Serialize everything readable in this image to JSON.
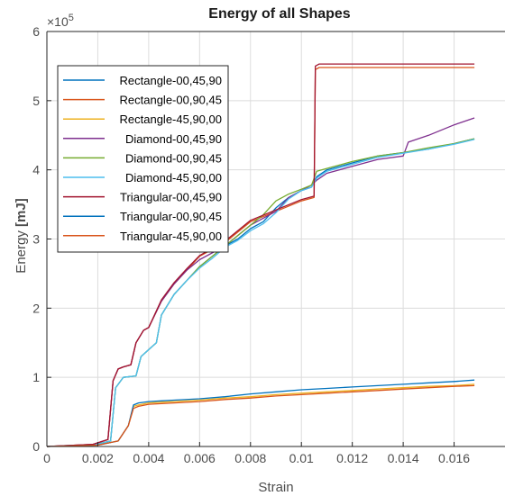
{
  "chart_data": {
    "type": "line",
    "title": "Energy of all Shapes",
    "xlabel": "Strain",
    "ylabel_prefix": "Energy ",
    "ylabel_unit": "[mJ]",
    "exponent_base": "×10",
    "exponent_power": "5",
    "xlim": [
      0,
      0.018
    ],
    "ylim": [
      0,
      600000
    ],
    "xticks": [
      0,
      0.002,
      0.004,
      0.006,
      0.008,
      0.01,
      0.012,
      0.014,
      0.016
    ],
    "xtick_labels": [
      "0",
      "0.002",
      "0.004",
      "0.006",
      "0.008",
      "0.01",
      "0.012",
      "0.014",
      "0.016"
    ],
    "yticks": [
      0,
      100000,
      200000,
      300000,
      400000,
      500000,
      600000
    ],
    "ytick_labels": [
      "0",
      "1",
      "2",
      "3",
      "4",
      "5",
      "6"
    ],
    "grid": true,
    "legend_position": "upper-left",
    "series": [
      {
        "name": "Rectangle-00,45,90",
        "color": "#0072BD",
        "points": [
          [
            0,
            0
          ],
          [
            0.0018,
            2000
          ],
          [
            0.0025,
            8000
          ],
          [
            0.0027,
            85000
          ],
          [
            0.003,
            100000
          ],
          [
            0.0035,
            102000
          ],
          [
            0.0037,
            130000
          ],
          [
            0.004,
            140000
          ],
          [
            0.0043,
            150000
          ],
          [
            0.0045,
            190000
          ],
          [
            0.005,
            220000
          ],
          [
            0.0055,
            240000
          ],
          [
            0.006,
            260000
          ],
          [
            0.0065,
            275000
          ],
          [
            0.007,
            290000
          ],
          [
            0.0075,
            300000
          ],
          [
            0.008,
            315000
          ],
          [
            0.0085,
            325000
          ],
          [
            0.009,
            345000
          ],
          [
            0.0095,
            360000
          ],
          [
            0.01,
            370000
          ],
          [
            0.0104,
            375000
          ],
          [
            0.0106,
            390000
          ],
          [
            0.011,
            400000
          ],
          [
            0.012,
            410000
          ],
          [
            0.013,
            420000
          ],
          [
            0.014,
            425000
          ],
          [
            0.015,
            430000
          ],
          [
            0.016,
            438000
          ],
          [
            0.0168,
            445000
          ]
        ]
      },
      {
        "name": "Rectangle-00,90,45",
        "color": "#D95319",
        "points": [
          [
            0,
            0
          ],
          [
            0.0018,
            3000
          ],
          [
            0.0024,
            10000
          ],
          [
            0.0026,
            95000
          ],
          [
            0.0028,
            112000
          ],
          [
            0.003,
            115000
          ],
          [
            0.0033,
            118000
          ],
          [
            0.0035,
            150000
          ],
          [
            0.0038,
            168000
          ],
          [
            0.004,
            172000
          ],
          [
            0.0045,
            210000
          ],
          [
            0.005,
            235000
          ],
          [
            0.0055,
            255000
          ],
          [
            0.006,
            275000
          ],
          [
            0.007,
            295000
          ],
          [
            0.008,
            325000
          ],
          [
            0.009,
            340000
          ],
          [
            0.01,
            355000
          ],
          [
            0.0105,
            360000
          ],
          [
            0.01055,
            545000
          ],
          [
            0.0107,
            548000
          ],
          [
            0.0168,
            548000
          ]
        ]
      },
      {
        "name": "Rectangle-45,90,00",
        "color": "#EDB120",
        "points": [
          [
            0,
            0
          ],
          [
            0.002,
            2000
          ],
          [
            0.0028,
            8000
          ],
          [
            0.0032,
            30000
          ],
          [
            0.0034,
            58000
          ],
          [
            0.0036,
            60000
          ],
          [
            0.004,
            63000
          ],
          [
            0.0045,
            64000
          ],
          [
            0.005,
            65000
          ],
          [
            0.006,
            67000
          ],
          [
            0.007,
            70000
          ],
          [
            0.008,
            72000
          ],
          [
            0.009,
            75000
          ],
          [
            0.01,
            77000
          ],
          [
            0.011,
            79000
          ],
          [
            0.012,
            81000
          ],
          [
            0.013,
            83000
          ],
          [
            0.014,
            85000
          ],
          [
            0.015,
            87000
          ],
          [
            0.016,
            88000
          ],
          [
            0.0168,
            90000
          ]
        ]
      },
      {
        "name": "Diamond-00,45,90",
        "color": "#7E2F8E",
        "points": [
          [
            0,
            0
          ],
          [
            0.0018,
            3000
          ],
          [
            0.0024,
            10000
          ],
          [
            0.0026,
            95000
          ],
          [
            0.0028,
            112000
          ],
          [
            0.003,
            115000
          ],
          [
            0.0033,
            118000
          ],
          [
            0.0035,
            150000
          ],
          [
            0.0038,
            168000
          ],
          [
            0.004,
            172000
          ],
          [
            0.0045,
            210000
          ],
          [
            0.005,
            235000
          ],
          [
            0.0055,
            255000
          ],
          [
            0.006,
            270000
          ],
          [
            0.007,
            290000
          ],
          [
            0.008,
            320000
          ],
          [
            0.009,
            340000
          ],
          [
            0.0095,
            360000
          ],
          [
            0.01,
            370000
          ],
          [
            0.0104,
            378000
          ],
          [
            0.0106,
            385000
          ],
          [
            0.011,
            395000
          ],
          [
            0.012,
            405000
          ],
          [
            0.013,
            415000
          ],
          [
            0.014,
            420000
          ],
          [
            0.0142,
            440000
          ],
          [
            0.015,
            450000
          ],
          [
            0.016,
            465000
          ],
          [
            0.0168,
            475000
          ]
        ]
      },
      {
        "name": "Diamond-00,90,45",
        "color": "#77AC30",
        "points": [
          [
            0,
            0
          ],
          [
            0.0018,
            2000
          ],
          [
            0.0025,
            8000
          ],
          [
            0.0027,
            85000
          ],
          [
            0.003,
            100000
          ],
          [
            0.0035,
            102000
          ],
          [
            0.0037,
            130000
          ],
          [
            0.004,
            140000
          ],
          [
            0.0043,
            150000
          ],
          [
            0.0045,
            190000
          ],
          [
            0.005,
            220000
          ],
          [
            0.0055,
            240000
          ],
          [
            0.006,
            260000
          ],
          [
            0.0065,
            275000
          ],
          [
            0.007,
            290000
          ],
          [
            0.0075,
            305000
          ],
          [
            0.008,
            320000
          ],
          [
            0.0085,
            335000
          ],
          [
            0.009,
            355000
          ],
          [
            0.0095,
            365000
          ],
          [
            0.01,
            372000
          ],
          [
            0.0104,
            378000
          ],
          [
            0.0106,
            398000
          ],
          [
            0.011,
            402000
          ],
          [
            0.012,
            412000
          ],
          [
            0.013,
            420000
          ],
          [
            0.014,
            425000
          ],
          [
            0.015,
            432000
          ],
          [
            0.016,
            438000
          ],
          [
            0.0168,
            445000
          ]
        ]
      },
      {
        "name": "Diamond-45,90,00",
        "color": "#4DBEEE",
        "points": [
          [
            0,
            0
          ],
          [
            0.0018,
            2000
          ],
          [
            0.0025,
            8000
          ],
          [
            0.0027,
            85000
          ],
          [
            0.003,
            100000
          ],
          [
            0.0035,
            102000
          ],
          [
            0.0037,
            130000
          ],
          [
            0.004,
            140000
          ],
          [
            0.0043,
            150000
          ],
          [
            0.0045,
            190000
          ],
          [
            0.005,
            220000
          ],
          [
            0.0055,
            240000
          ],
          [
            0.006,
            258000
          ],
          [
            0.0065,
            272000
          ],
          [
            0.007,
            288000
          ],
          [
            0.0075,
            298000
          ],
          [
            0.008,
            312000
          ],
          [
            0.0085,
            322000
          ],
          [
            0.009,
            338000
          ],
          [
            0.0095,
            358000
          ],
          [
            0.01,
            370000
          ],
          [
            0.0104,
            375000
          ],
          [
            0.0106,
            388000
          ],
          [
            0.011,
            398000
          ],
          [
            0.012,
            408000
          ],
          [
            0.013,
            418000
          ],
          [
            0.014,
            424000
          ],
          [
            0.015,
            430000
          ],
          [
            0.016,
            437000
          ],
          [
            0.0168,
            444000
          ]
        ]
      },
      {
        "name": "Triangular-00,45,90",
        "color": "#A2142F",
        "points": [
          [
            0,
            0
          ],
          [
            0.0018,
            3000
          ],
          [
            0.0024,
            10000
          ],
          [
            0.0026,
            95000
          ],
          [
            0.0028,
            112000
          ],
          [
            0.003,
            115000
          ],
          [
            0.0033,
            118000
          ],
          [
            0.0035,
            150000
          ],
          [
            0.0038,
            168000
          ],
          [
            0.004,
            172000
          ],
          [
            0.0045,
            212000
          ],
          [
            0.005,
            237000
          ],
          [
            0.0055,
            257000
          ],
          [
            0.006,
            276000
          ],
          [
            0.007,
            297000
          ],
          [
            0.008,
            327000
          ],
          [
            0.009,
            342000
          ],
          [
            0.01,
            357000
          ],
          [
            0.0105,
            362000
          ],
          [
            0.01055,
            550000
          ],
          [
            0.0107,
            553000
          ],
          [
            0.0168,
            553000
          ]
        ]
      },
      {
        "name": "Triangular-00,90,45",
        "color": "#0072BD",
        "points": [
          [
            0,
            0
          ],
          [
            0.002,
            2000
          ],
          [
            0.0028,
            8000
          ],
          [
            0.0032,
            30000
          ],
          [
            0.0034,
            60000
          ],
          [
            0.0036,
            63000
          ],
          [
            0.004,
            65000
          ],
          [
            0.0045,
            66000
          ],
          [
            0.005,
            67000
          ],
          [
            0.006,
            69000
          ],
          [
            0.007,
            72000
          ],
          [
            0.008,
            76000
          ],
          [
            0.009,
            79000
          ],
          [
            0.01,
            82000
          ],
          [
            0.011,
            84000
          ],
          [
            0.012,
            86000
          ],
          [
            0.013,
            88000
          ],
          [
            0.014,
            90000
          ],
          [
            0.015,
            92000
          ],
          [
            0.016,
            94000
          ],
          [
            0.0168,
            96000
          ]
        ]
      },
      {
        "name": "Triangular-45,90,00",
        "color": "#D95319",
        "points": [
          [
            0,
            0
          ],
          [
            0.002,
            2000
          ],
          [
            0.0028,
            8000
          ],
          [
            0.0032,
            30000
          ],
          [
            0.0034,
            55000
          ],
          [
            0.0036,
            58000
          ],
          [
            0.004,
            61000
          ],
          [
            0.0045,
            62000
          ],
          [
            0.005,
            63000
          ],
          [
            0.006,
            65000
          ],
          [
            0.007,
            68000
          ],
          [
            0.008,
            70000
          ],
          [
            0.009,
            73000
          ],
          [
            0.01,
            75000
          ],
          [
            0.011,
            77000
          ],
          [
            0.012,
            79000
          ],
          [
            0.013,
            81000
          ],
          [
            0.014,
            83000
          ],
          [
            0.015,
            85000
          ],
          [
            0.016,
            87000
          ],
          [
            0.0168,
            88000
          ]
        ]
      }
    ]
  }
}
